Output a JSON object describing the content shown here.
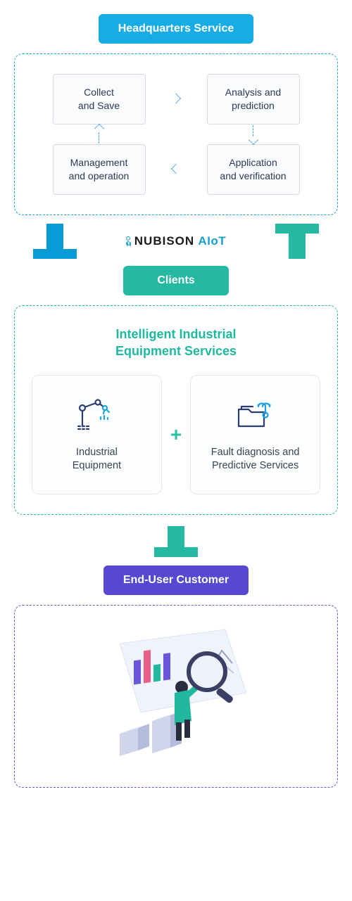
{
  "colors": {
    "hqBadge": "#18ace5",
    "hqPanelBorder": "#1aa3df",
    "cycleBoxBorder": "#d5dbe6",
    "cycleBoxBg": "#fafbfd",
    "cycleText": "#2b3856",
    "arrowBlue": "#089bd6",
    "arrowTeal": "#25b9a3",
    "clientsBadge": "#25b9a3",
    "clientsPanelBorder": "#25b9a3",
    "clientsTitle": "#1fb89e",
    "plus": "#2cc0a6",
    "endBadge": "#5747d1",
    "endPanelBorder": "#6a56d8",
    "brandDark": "#1a1a1a",
    "brandAccent": "#18a0c9",
    "bodyText": "#3a4256"
  },
  "hq": {
    "badge": "Headquarters Service",
    "boxes": {
      "tl": "Collect\nand Save",
      "tr": "Analysis and\nprediction",
      "bl": "Management\nand operation",
      "br": "Application\nand verification"
    }
  },
  "brand": {
    "name": "NUBISON",
    "suffix": "AIoT"
  },
  "clients": {
    "badge": "Clients",
    "title": "Intelligent Industrial\nEquipment Services",
    "left": "Industrial\nEquipment",
    "right": "Fault diagnosis and\nPredictive Services",
    "plus": "+"
  },
  "end": {
    "badge": "End-User Customer"
  }
}
